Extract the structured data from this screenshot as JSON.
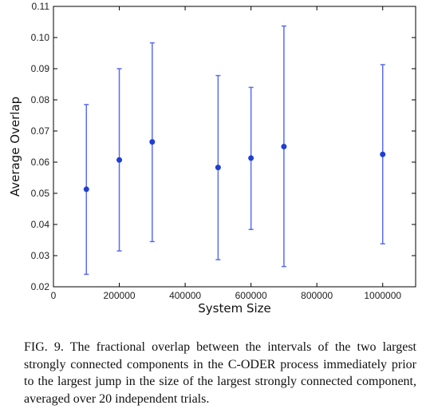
{
  "chart_data": {
    "type": "scatter",
    "xlabel": "System Size",
    "ylabel": "Average Overlap",
    "xlim": [
      0,
      1100000
    ],
    "ylim": [
      0.02,
      0.11
    ],
    "x_ticks": [
      0,
      200000,
      400000,
      600000,
      800000,
      1000000
    ],
    "x_tick_labels": [
      "0",
      "200000",
      "400000",
      "600000",
      "800000",
      "1000000"
    ],
    "y_ticks": [
      0.02,
      0.03,
      0.04,
      0.05,
      0.06,
      0.07,
      0.08,
      0.09,
      0.1,
      0.11
    ],
    "y_tick_labels": [
      "0.02",
      "0.03",
      "0.04",
      "0.05",
      "0.06",
      "0.07",
      "0.08",
      "0.09",
      "0.10",
      "0.11"
    ],
    "grid": false,
    "series": [
      {
        "color": "#1f3fcf",
        "errorbar_color": "#5b6cf0",
        "points": [
          {
            "x": 100000,
            "y": 0.0513,
            "err_low": 0.024,
            "err_high": 0.0785
          },
          {
            "x": 200000,
            "y": 0.0607,
            "err_low": 0.0315,
            "err_high": 0.09
          },
          {
            "x": 300000,
            "y": 0.0665,
            "err_low": 0.0345,
            "err_high": 0.0983
          },
          {
            "x": 500000,
            "y": 0.0583,
            "err_low": 0.0287,
            "err_high": 0.0878
          },
          {
            "x": 600000,
            "y": 0.0613,
            "err_low": 0.0384,
            "err_high": 0.084
          },
          {
            "x": 700000,
            "y": 0.065,
            "err_low": 0.0265,
            "err_high": 0.1037
          },
          {
            "x": 1000000,
            "y": 0.0625,
            "err_low": 0.0338,
            "err_high": 0.0913
          }
        ]
      }
    ]
  },
  "caption": {
    "text": "FIG. 9. The fractional overlap between the intervals of the two largest strongly connected components in the C-ODER process immediately prior to the largest jump in the size of the largest strongly connected component, averaged over 20 independent trials."
  }
}
